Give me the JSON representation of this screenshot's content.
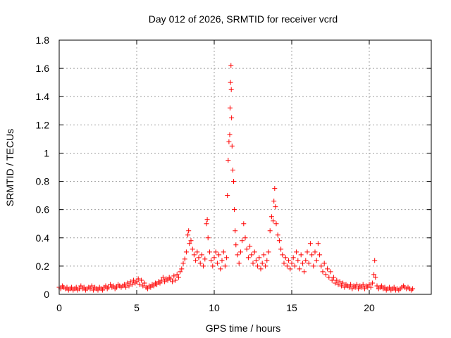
{
  "chart_data": {
    "type": "scatter",
    "title": "Day 012 of 2026, SRMTID for receiver vcrd",
    "xlabel": "GPS time / hours",
    "ylabel": "SRMTID / TECUs",
    "xlim": [
      0,
      24
    ],
    "ylim": [
      0,
      1.8
    ],
    "x_ticks": [
      0,
      5,
      10,
      15,
      20
    ],
    "x_tick_labels": [
      "0",
      "5",
      "10",
      "15",
      "20"
    ],
    "y_ticks": [
      0,
      0.2,
      0.4,
      0.6,
      0.8,
      1,
      1.2,
      1.4,
      1.6,
      1.8
    ],
    "y_tick_labels": [
      "0",
      "0.2",
      "0.4",
      "0.6",
      "0.8",
      "1",
      "1.2",
      "1.4",
      "1.6",
      "1.8"
    ],
    "grid": true,
    "marker": "+",
    "marker_color": "#ff0000",
    "series": [
      {
        "name": "SRMTID",
        "points": [
          [
            0.0,
            0.05
          ],
          [
            0.1,
            0.04
          ],
          [
            0.2,
            0.06
          ],
          [
            0.3,
            0.05
          ],
          [
            0.4,
            0.04
          ],
          [
            0.5,
            0.05
          ],
          [
            0.6,
            0.03
          ],
          [
            0.7,
            0.04
          ],
          [
            0.8,
            0.05
          ],
          [
            0.9,
            0.03
          ],
          [
            1.0,
            0.04
          ],
          [
            1.1,
            0.05
          ],
          [
            1.2,
            0.03
          ],
          [
            1.3,
            0.04
          ],
          [
            1.4,
            0.06
          ],
          [
            1.5,
            0.04
          ],
          [
            1.6,
            0.05
          ],
          [
            1.7,
            0.03
          ],
          [
            1.8,
            0.04
          ],
          [
            1.9,
            0.05
          ],
          [
            2.0,
            0.04
          ],
          [
            2.1,
            0.06
          ],
          [
            2.2,
            0.03
          ],
          [
            2.3,
            0.05
          ],
          [
            2.4,
            0.04
          ],
          [
            2.5,
            0.03
          ],
          [
            2.6,
            0.05
          ],
          [
            2.7,
            0.04
          ],
          [
            2.8,
            0.03
          ],
          [
            2.9,
            0.05
          ],
          [
            3.0,
            0.06
          ],
          [
            3.1,
            0.04
          ],
          [
            3.2,
            0.05
          ],
          [
            3.3,
            0.07
          ],
          [
            3.4,
            0.05
          ],
          [
            3.5,
            0.06
          ],
          [
            3.6,
            0.04
          ],
          [
            3.7,
            0.05
          ],
          [
            3.8,
            0.07
          ],
          [
            3.9,
            0.06
          ],
          [
            4.0,
            0.05
          ],
          [
            4.1,
            0.06
          ],
          [
            4.2,
            0.07
          ],
          [
            4.3,
            0.05
          ],
          [
            4.4,
            0.08
          ],
          [
            4.5,
            0.06
          ],
          [
            4.6,
            0.09
          ],
          [
            4.7,
            0.07
          ],
          [
            4.8,
            0.1
          ],
          [
            4.9,
            0.08
          ],
          [
            5.0,
            0.09
          ],
          [
            5.1,
            0.11
          ],
          [
            5.2,
            0.07
          ],
          [
            5.3,
            0.1
          ],
          [
            5.4,
            0.06
          ],
          [
            5.5,
            0.08
          ],
          [
            5.6,
            0.05
          ],
          [
            5.7,
            0.04
          ],
          [
            5.8,
            0.06
          ],
          [
            5.9,
            0.05
          ],
          [
            6.0,
            0.07
          ],
          [
            6.1,
            0.06
          ],
          [
            6.2,
            0.08
          ],
          [
            6.3,
            0.07
          ],
          [
            6.4,
            0.09
          ],
          [
            6.5,
            0.08
          ],
          [
            6.6,
            0.1
          ],
          [
            6.7,
            0.12
          ],
          [
            6.8,
            0.09
          ],
          [
            6.9,
            0.11
          ],
          [
            7.0,
            0.1
          ],
          [
            7.1,
            0.12
          ],
          [
            7.2,
            0.11
          ],
          [
            7.3,
            0.09
          ],
          [
            7.4,
            0.13
          ],
          [
            7.5,
            0.1
          ],
          [
            7.6,
            0.14
          ],
          [
            7.7,
            0.12
          ],
          [
            7.8,
            0.16
          ],
          [
            7.9,
            0.18
          ],
          [
            8.0,
            0.22
          ],
          [
            8.1,
            0.25
          ],
          [
            8.2,
            0.3
          ],
          [
            8.3,
            0.42
          ],
          [
            8.35,
            0.45
          ],
          [
            8.4,
            0.36
          ],
          [
            8.5,
            0.38
          ],
          [
            8.6,
            0.32
          ],
          [
            8.7,
            0.28
          ],
          [
            8.8,
            0.24
          ],
          [
            8.9,
            0.3
          ],
          [
            9.0,
            0.26
          ],
          [
            9.1,
            0.22
          ],
          [
            9.2,
            0.28
          ],
          [
            9.3,
            0.2
          ],
          [
            9.4,
            0.25
          ],
          [
            9.5,
            0.5
          ],
          [
            9.55,
            0.53
          ],
          [
            9.6,
            0.4
          ],
          [
            9.7,
            0.3
          ],
          [
            9.8,
            0.24
          ],
          [
            9.9,
            0.2
          ],
          [
            10.0,
            0.26
          ],
          [
            10.1,
            0.3
          ],
          [
            10.2,
            0.22
          ],
          [
            10.3,
            0.28
          ],
          [
            10.4,
            0.18
          ],
          [
            10.5,
            0.24
          ],
          [
            10.6,
            0.3
          ],
          [
            10.7,
            0.2
          ],
          [
            10.8,
            0.26
          ],
          [
            10.85,
            0.7
          ],
          [
            10.9,
            0.95
          ],
          [
            10.95,
            1.08
          ],
          [
            11.0,
            1.13
          ],
          [
            11.02,
            1.32
          ],
          [
            11.05,
            1.5
          ],
          [
            11.08,
            1.62
          ],
          [
            11.1,
            1.45
          ],
          [
            11.12,
            1.25
          ],
          [
            11.15,
            1.05
          ],
          [
            11.2,
            0.88
          ],
          [
            11.25,
            0.8
          ],
          [
            11.3,
            0.6
          ],
          [
            11.35,
            0.45
          ],
          [
            11.4,
            0.35
          ],
          [
            11.5,
            0.28
          ],
          [
            11.6,
            0.22
          ],
          [
            11.7,
            0.3
          ],
          [
            11.8,
            0.38
          ],
          [
            11.9,
            0.5
          ],
          [
            12.0,
            0.4
          ],
          [
            12.1,
            0.32
          ],
          [
            12.2,
            0.26
          ],
          [
            12.3,
            0.34
          ],
          [
            12.4,
            0.28
          ],
          [
            12.5,
            0.22
          ],
          [
            12.6,
            0.3
          ],
          [
            12.7,
            0.24
          ],
          [
            12.8,
            0.2
          ],
          [
            12.9,
            0.26
          ],
          [
            13.0,
            0.18
          ],
          [
            13.1,
            0.22
          ],
          [
            13.2,
            0.28
          ],
          [
            13.3,
            0.2
          ],
          [
            13.4,
            0.24
          ],
          [
            13.5,
            0.3
          ],
          [
            13.6,
            0.45
          ],
          [
            13.7,
            0.55
          ],
          [
            13.8,
            0.52
          ],
          [
            13.85,
            0.66
          ],
          [
            13.9,
            0.75
          ],
          [
            13.95,
            0.62
          ],
          [
            14.0,
            0.5
          ],
          [
            14.1,
            0.42
          ],
          [
            14.2,
            0.38
          ],
          [
            14.3,
            0.32
          ],
          [
            14.4,
            0.28
          ],
          [
            14.5,
            0.22
          ],
          [
            14.6,
            0.26
          ],
          [
            14.7,
            0.2
          ],
          [
            14.8,
            0.24
          ],
          [
            14.9,
            0.18
          ],
          [
            15.0,
            0.22
          ],
          [
            15.1,
            0.26
          ],
          [
            15.2,
            0.2
          ],
          [
            15.3,
            0.3
          ],
          [
            15.4,
            0.24
          ],
          [
            15.5,
            0.18
          ],
          [
            15.6,
            0.28
          ],
          [
            15.7,
            0.22
          ],
          [
            15.8,
            0.16
          ],
          [
            15.9,
            0.24
          ],
          [
            16.0,
            0.3
          ],
          [
            16.1,
            0.22
          ],
          [
            16.2,
            0.36
          ],
          [
            16.3,
            0.28
          ],
          [
            16.4,
            0.2
          ],
          [
            16.5,
            0.3
          ],
          [
            16.6,
            0.24
          ],
          [
            16.7,
            0.36
          ],
          [
            16.8,
            0.28
          ],
          [
            16.9,
            0.2
          ],
          [
            17.0,
            0.16
          ],
          [
            17.1,
            0.22
          ],
          [
            17.2,
            0.14
          ],
          [
            17.3,
            0.18
          ],
          [
            17.4,
            0.12
          ],
          [
            17.5,
            0.16
          ],
          [
            17.6,
            0.1
          ],
          [
            17.7,
            0.12
          ],
          [
            17.8,
            0.08
          ],
          [
            17.9,
            0.1
          ],
          [
            18.0,
            0.07
          ],
          [
            18.1,
            0.09
          ],
          [
            18.2,
            0.06
          ],
          [
            18.3,
            0.08
          ],
          [
            18.4,
            0.05
          ],
          [
            18.5,
            0.07
          ],
          [
            18.6,
            0.06
          ],
          [
            18.7,
            0.05
          ],
          [
            18.8,
            0.07
          ],
          [
            18.9,
            0.04
          ],
          [
            19.0,
            0.06
          ],
          [
            19.1,
            0.05
          ],
          [
            19.2,
            0.07
          ],
          [
            19.3,
            0.04
          ],
          [
            19.4,
            0.06
          ],
          [
            19.5,
            0.05
          ],
          [
            19.6,
            0.07
          ],
          [
            19.7,
            0.04
          ],
          [
            19.8,
            0.06
          ],
          [
            19.9,
            0.05
          ],
          [
            20.0,
            0.07
          ],
          [
            20.1,
            0.05
          ],
          [
            20.2,
            0.08
          ],
          [
            20.3,
            0.14
          ],
          [
            20.35,
            0.24
          ],
          [
            20.4,
            0.12
          ],
          [
            20.5,
            0.06
          ],
          [
            20.6,
            0.04
          ],
          [
            20.7,
            0.05
          ],
          [
            20.8,
            0.06
          ],
          [
            20.9,
            0.04
          ],
          [
            21.0,
            0.05
          ],
          [
            21.1,
            0.03
          ],
          [
            21.2,
            0.04
          ],
          [
            21.3,
            0.05
          ],
          [
            21.4,
            0.03
          ],
          [
            21.5,
            0.04
          ],
          [
            21.6,
            0.05
          ],
          [
            21.7,
            0.03
          ],
          [
            21.8,
            0.04
          ],
          [
            21.9,
            0.03
          ],
          [
            22.0,
            0.04
          ],
          [
            22.1,
            0.05
          ],
          [
            22.2,
            0.06
          ],
          [
            22.3,
            0.05
          ],
          [
            22.4,
            0.04
          ],
          [
            22.5,
            0.05
          ],
          [
            22.6,
            0.04
          ],
          [
            22.7,
            0.03
          ],
          [
            22.8,
            0.04
          ]
        ]
      }
    ]
  }
}
